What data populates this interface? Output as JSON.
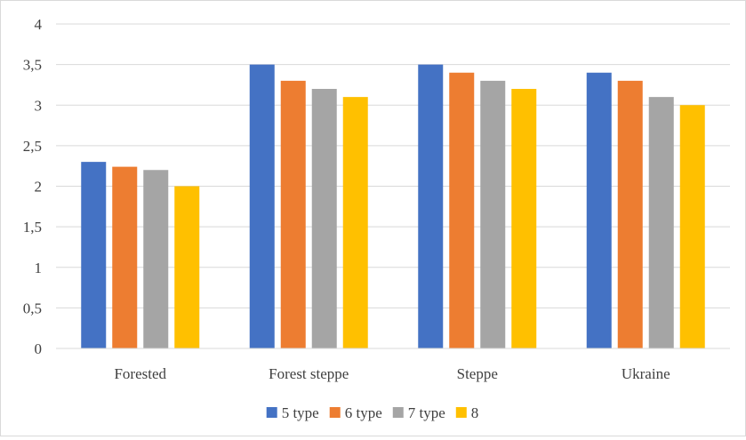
{
  "chart_data": {
    "type": "bar",
    "categories": [
      "Forested",
      "Forest steppe",
      "Steppe",
      "Ukraine"
    ],
    "series": [
      {
        "name": "5 type",
        "color": "#4472c4",
        "values": [
          2.3,
          3.5,
          3.5,
          3.4
        ]
      },
      {
        "name": "6 type",
        "color": "#ed7d31",
        "values": [
          2.24,
          3.3,
          3.4,
          3.3
        ]
      },
      {
        "name": "7 type",
        "color": "#a5a5a5",
        "values": [
          2.2,
          3.2,
          3.3,
          3.1
        ]
      },
      {
        "name": "8",
        "color": "#ffc000",
        "values": [
          2.0,
          3.1,
          3.2,
          3.0
        ]
      }
    ],
    "yticks": [
      "0",
      "0,5",
      "1",
      "1,5",
      "2",
      "2,5",
      "3",
      "3,5",
      "4"
    ],
    "ylim": [
      0,
      4
    ],
    "grid": true,
    "legend_position": "bottom",
    "title": "",
    "xlabel": "",
    "ylabel": ""
  }
}
